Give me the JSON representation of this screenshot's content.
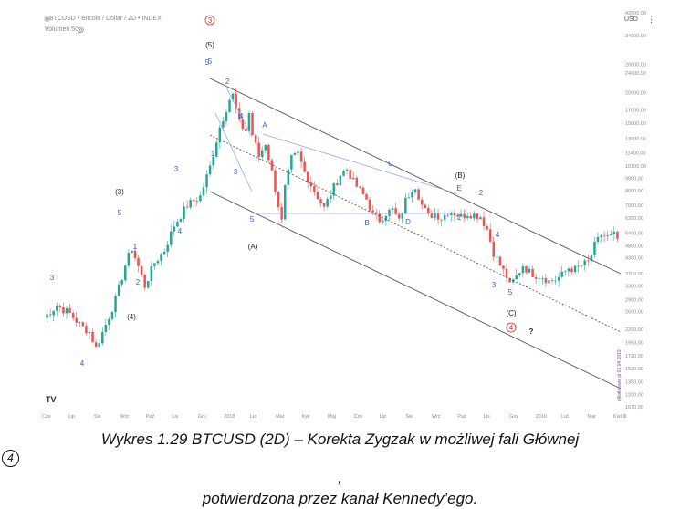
{
  "header": {
    "title": "BTCUSD • Bitcoin / Dollar / 2D • INDEX",
    "volume": "Volumen 50",
    "currency": "USD",
    "watermark": "elliott-wave.pl 01.04.2019"
  },
  "caption": {
    "line1": "Wykres 1.29 BTCUSD (2D) – Korekta Zygzak w możliwej fali Głównej",
    "circled": "4",
    "comma": ",",
    "line2": "potwierdzona przez kanał Kennedy’ego."
  },
  "colors": {
    "up": "#26a69a",
    "down": "#ef5350",
    "channel": "#555555",
    "triangle": "#8fa8ee",
    "wave_blue": "#2f5fe0",
    "wave_red": "#d03030"
  },
  "chart_data": {
    "type": "candlestick",
    "y_scale": "log",
    "ylim": [
      1070,
      42000
    ],
    "y_ticks": [
      "42000,00",
      "34000,00",
      "26000,00",
      "24000,00",
      "20000,00",
      "17000,00",
      "15000,00",
      "13000,00",
      "11400,00",
      "10100,00",
      "9000,00",
      "8000,00",
      "7000,00",
      "6200,00",
      "5400,00",
      "4800,00",
      "4300,00",
      "3700,00",
      "3300,00",
      "2900,00",
      "2600,00",
      "2200,00",
      "1950,00",
      "1720,00",
      "1530,00",
      "1350,00",
      "1200,00",
      "1070,00"
    ],
    "x_ticks": [
      "Cze",
      "Lip",
      "Sie",
      "Wrz",
      "Paź",
      "Lis",
      "Gru",
      "2018",
      "Lut",
      "Mar",
      "Kwi",
      "Maj",
      "Cze",
      "Lip",
      "Sie",
      "Wrz",
      "Paź",
      "Lis",
      "Gru",
      "2019",
      "Lut",
      "Mar",
      "Kwi"
    ],
    "date_range": [
      "2017-06",
      "2019-04"
    ],
    "price_path": [
      [
        0,
        2450
      ],
      [
        4,
        2750
      ],
      [
        8,
        2550
      ],
      [
        11,
        2300
      ],
      [
        14,
        2150
      ],
      [
        16,
        1850
      ],
      [
        19,
        2300
      ],
      [
        22,
        2900
      ],
      [
        25,
        4000
      ],
      [
        27,
        4700
      ],
      [
        29,
        3950
      ],
      [
        31,
        3300
      ],
      [
        34,
        4100
      ],
      [
        37,
        4600
      ],
      [
        40,
        5800
      ],
      [
        44,
        7000
      ],
      [
        48,
        7600
      ],
      [
        51,
        10000
      ],
      [
        54,
        14500
      ],
      [
        57,
        18800
      ],
      [
        58,
        19500
      ],
      [
        60,
        15000
      ],
      [
        62,
        14000
      ],
      [
        63,
        16500
      ],
      [
        64,
        13500
      ],
      [
        66,
        11000
      ],
      [
        68,
        12500
      ],
      [
        70,
        9500
      ],
      [
        72,
        7000
      ],
      [
        73,
        6000
      ],
      [
        74,
        8200
      ],
      [
        76,
        10800
      ],
      [
        78,
        11300
      ],
      [
        80,
        9500
      ],
      [
        83,
        8000
      ],
      [
        86,
        6800
      ],
      [
        88,
        7800
      ],
      [
        91,
        9300
      ],
      [
        93,
        9800
      ],
      [
        95,
        8700
      ],
      [
        97,
        8000
      ],
      [
        99,
        7400
      ],
      [
        101,
        6400
      ],
      [
        103,
        6100
      ],
      [
        105,
        6500
      ],
      [
        107,
        6700
      ],
      [
        109,
        6000
      ],
      [
        111,
        7300
      ],
      [
        113,
        8200
      ],
      [
        114,
        8400
      ],
      [
        116,
        7000
      ],
      [
        118,
        6300
      ],
      [
        120,
        6500
      ],
      [
        122,
        6200
      ],
      [
        124,
        6600
      ],
      [
        126,
        6500
      ],
      [
        128,
        6300
      ],
      [
        130,
        6500
      ],
      [
        132,
        6400
      ],
      [
        134,
        6300
      ],
      [
        136,
        5600
      ],
      [
        138,
        4500
      ],
      [
        140,
        4000
      ],
      [
        142,
        3600
      ],
      [
        143,
        3300
      ],
      [
        145,
        3600
      ],
      [
        147,
        4000
      ],
      [
        149,
        3750
      ],
      [
        151,
        3650
      ],
      [
        153,
        3600
      ],
      [
        155,
        3450
      ],
      [
        157,
        3500
      ],
      [
        159,
        3650
      ],
      [
        161,
        3900
      ],
      [
        163,
        3850
      ],
      [
        165,
        4000
      ],
      [
        167,
        4100
      ],
      [
        169,
        4800
      ],
      [
        171,
        5300
      ],
      [
        173,
        5200
      ],
      [
        175,
        5300
      ],
      [
        176,
        5100
      ]
    ],
    "wave_labels": [
      {
        "text": "3",
        "style": "blue"
      },
      {
        "text": "4",
        "style": "blue"
      },
      {
        "text": "(3)",
        "style": "dark"
      },
      {
        "text": "(4)",
        "style": "dark"
      },
      {
        "text": "5",
        "style": "blue"
      },
      {
        "text": "1",
        "style": "blue"
      },
      {
        "text": "2",
        "style": "blue"
      },
      {
        "text": "3",
        "style": "blue"
      },
      {
        "text": "4",
        "style": "blue"
      },
      {
        "text": "5",
        "style": "blue"
      },
      {
        "text": "(5)",
        "style": "dark"
      },
      {
        "text": "5",
        "style": "blue"
      },
      {
        "text": "3",
        "style": "red_circle"
      },
      {
        "text": "2",
        "style": "blue"
      },
      {
        "text": "4",
        "style": "blue"
      },
      {
        "text": "1",
        "style": "blue"
      },
      {
        "text": "3",
        "style": "blue"
      },
      {
        "text": "5",
        "style": "blue"
      },
      {
        "text": "A",
        "style": "blue"
      },
      {
        "text": "(A)",
        "style": "dark"
      },
      {
        "text": "B",
        "style": "blue"
      },
      {
        "text": "C",
        "style": "blue"
      },
      {
        "text": "D",
        "style": "blue"
      },
      {
        "text": "E",
        "style": "blue"
      },
      {
        "text": "(B)",
        "style": "dark"
      },
      {
        "text": "1",
        "style": "blue"
      },
      {
        "text": "2",
        "style": "blue"
      },
      {
        "text": "4",
        "style": "blue"
      },
      {
        "text": "3",
        "style": "blue"
      },
      {
        "text": "5",
        "style": "blue"
      },
      {
        "text": "(C)",
        "style": "dark"
      },
      {
        "text": "4",
        "style": "red_circle"
      },
      {
        "text": "?",
        "style": "dark"
      }
    ]
  }
}
